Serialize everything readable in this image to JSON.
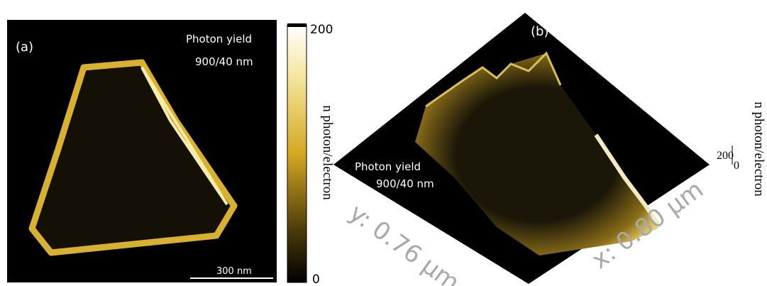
{
  "panel_a": {
    "label": "(a)",
    "annotation": [
      "Photon yield",
      "900/40 nm"
    ],
    "scale_bar": "300 nm",
    "colorbar": {
      "max_label": "200",
      "min_label": "0",
      "title": "n photon/electron"
    }
  },
  "panel_b": {
    "label": "(b)",
    "annotation": [
      "Photon yield",
      "900/40 nm"
    ],
    "x_axis": "x: 0.80 µm",
    "y_axis": "y: 0.76 µm",
    "z_axis": {
      "max_label": "200",
      "min_label": "0",
      "title": "n photon/electron"
    }
  }
}
